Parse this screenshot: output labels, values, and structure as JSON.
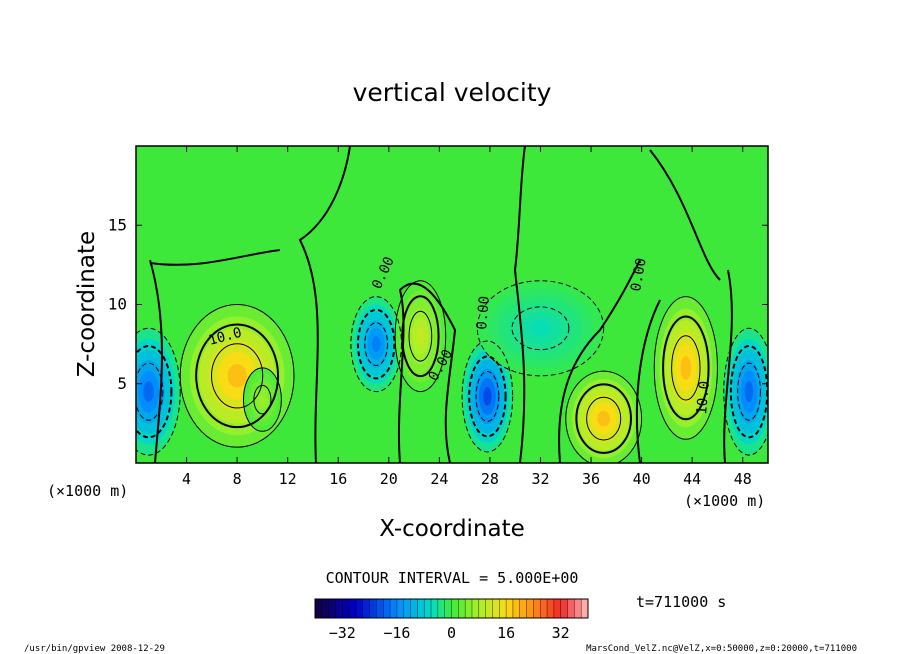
{
  "chart_data": {
    "type": "heatmap",
    "title": "vertical velocity",
    "xlabel": "X-coordinate",
    "ylabel": "Z-coordinate",
    "x_unit_label": "(×1000 m)",
    "y_unit_label": "(×1000 m)",
    "xlim": [
      0,
      50
    ],
    "ylim": [
      0,
      20
    ],
    "x_ticks": [
      "4",
      "8",
      "12",
      "16",
      "20",
      "24",
      "28",
      "32",
      "36",
      "40",
      "44",
      "48"
    ],
    "y_ticks": [
      "5",
      "10",
      "15"
    ],
    "contour_interval_text": "CONTOUR INTERVAL = 5.000E+00",
    "contour_labels": [
      "10.0",
      "0.00",
      "0.00",
      "0.00",
      "0.00",
      "0.00",
      "10.0"
    ],
    "time_text": "t=711000 s",
    "colorbar": {
      "range": [
        -40,
        40
      ],
      "ticks": [
        "−32",
        "−16",
        "0",
        "16",
        "32"
      ]
    },
    "cells": [
      {
        "x": 1,
        "z": 4.5,
        "w": -22,
        "rx": 2.5,
        "rz": 4
      },
      {
        "x": 8,
        "z": 5.5,
        "w": 22,
        "rx": 4.5,
        "rz": 4.5
      },
      {
        "x": 10,
        "z": 4,
        "w": 8,
        "rx": 1.5,
        "rz": 2
      },
      {
        "x": 19,
        "z": 7.5,
        "w": -20,
        "rx": 2,
        "rz": 3
      },
      {
        "x": 22.5,
        "z": 8,
        "w": 12,
        "rx": 2,
        "rz": 3.5
      },
      {
        "x": 27.8,
        "z": 4.2,
        "w": -25,
        "rx": 2,
        "rz": 3.5
      },
      {
        "x": 37,
        "z": 2.8,
        "w": 22,
        "rx": 3,
        "rz": 3
      },
      {
        "x": 43.5,
        "z": 6,
        "w": 22,
        "rx": 2.5,
        "rz": 4.5
      },
      {
        "x": 48.5,
        "z": 4.5,
        "w": -22,
        "rx": 2,
        "rz": 4
      },
      {
        "x": 32,
        "z": 8.5,
        "w": -6,
        "rx": 5,
        "rz": 3
      }
    ]
  },
  "footer": {
    "program": "/usr/bin/gpview   2008-12-29",
    "source": "MarsCond_VelZ.nc@VelZ,x=0:50000,z=0:20000,t=711000"
  }
}
